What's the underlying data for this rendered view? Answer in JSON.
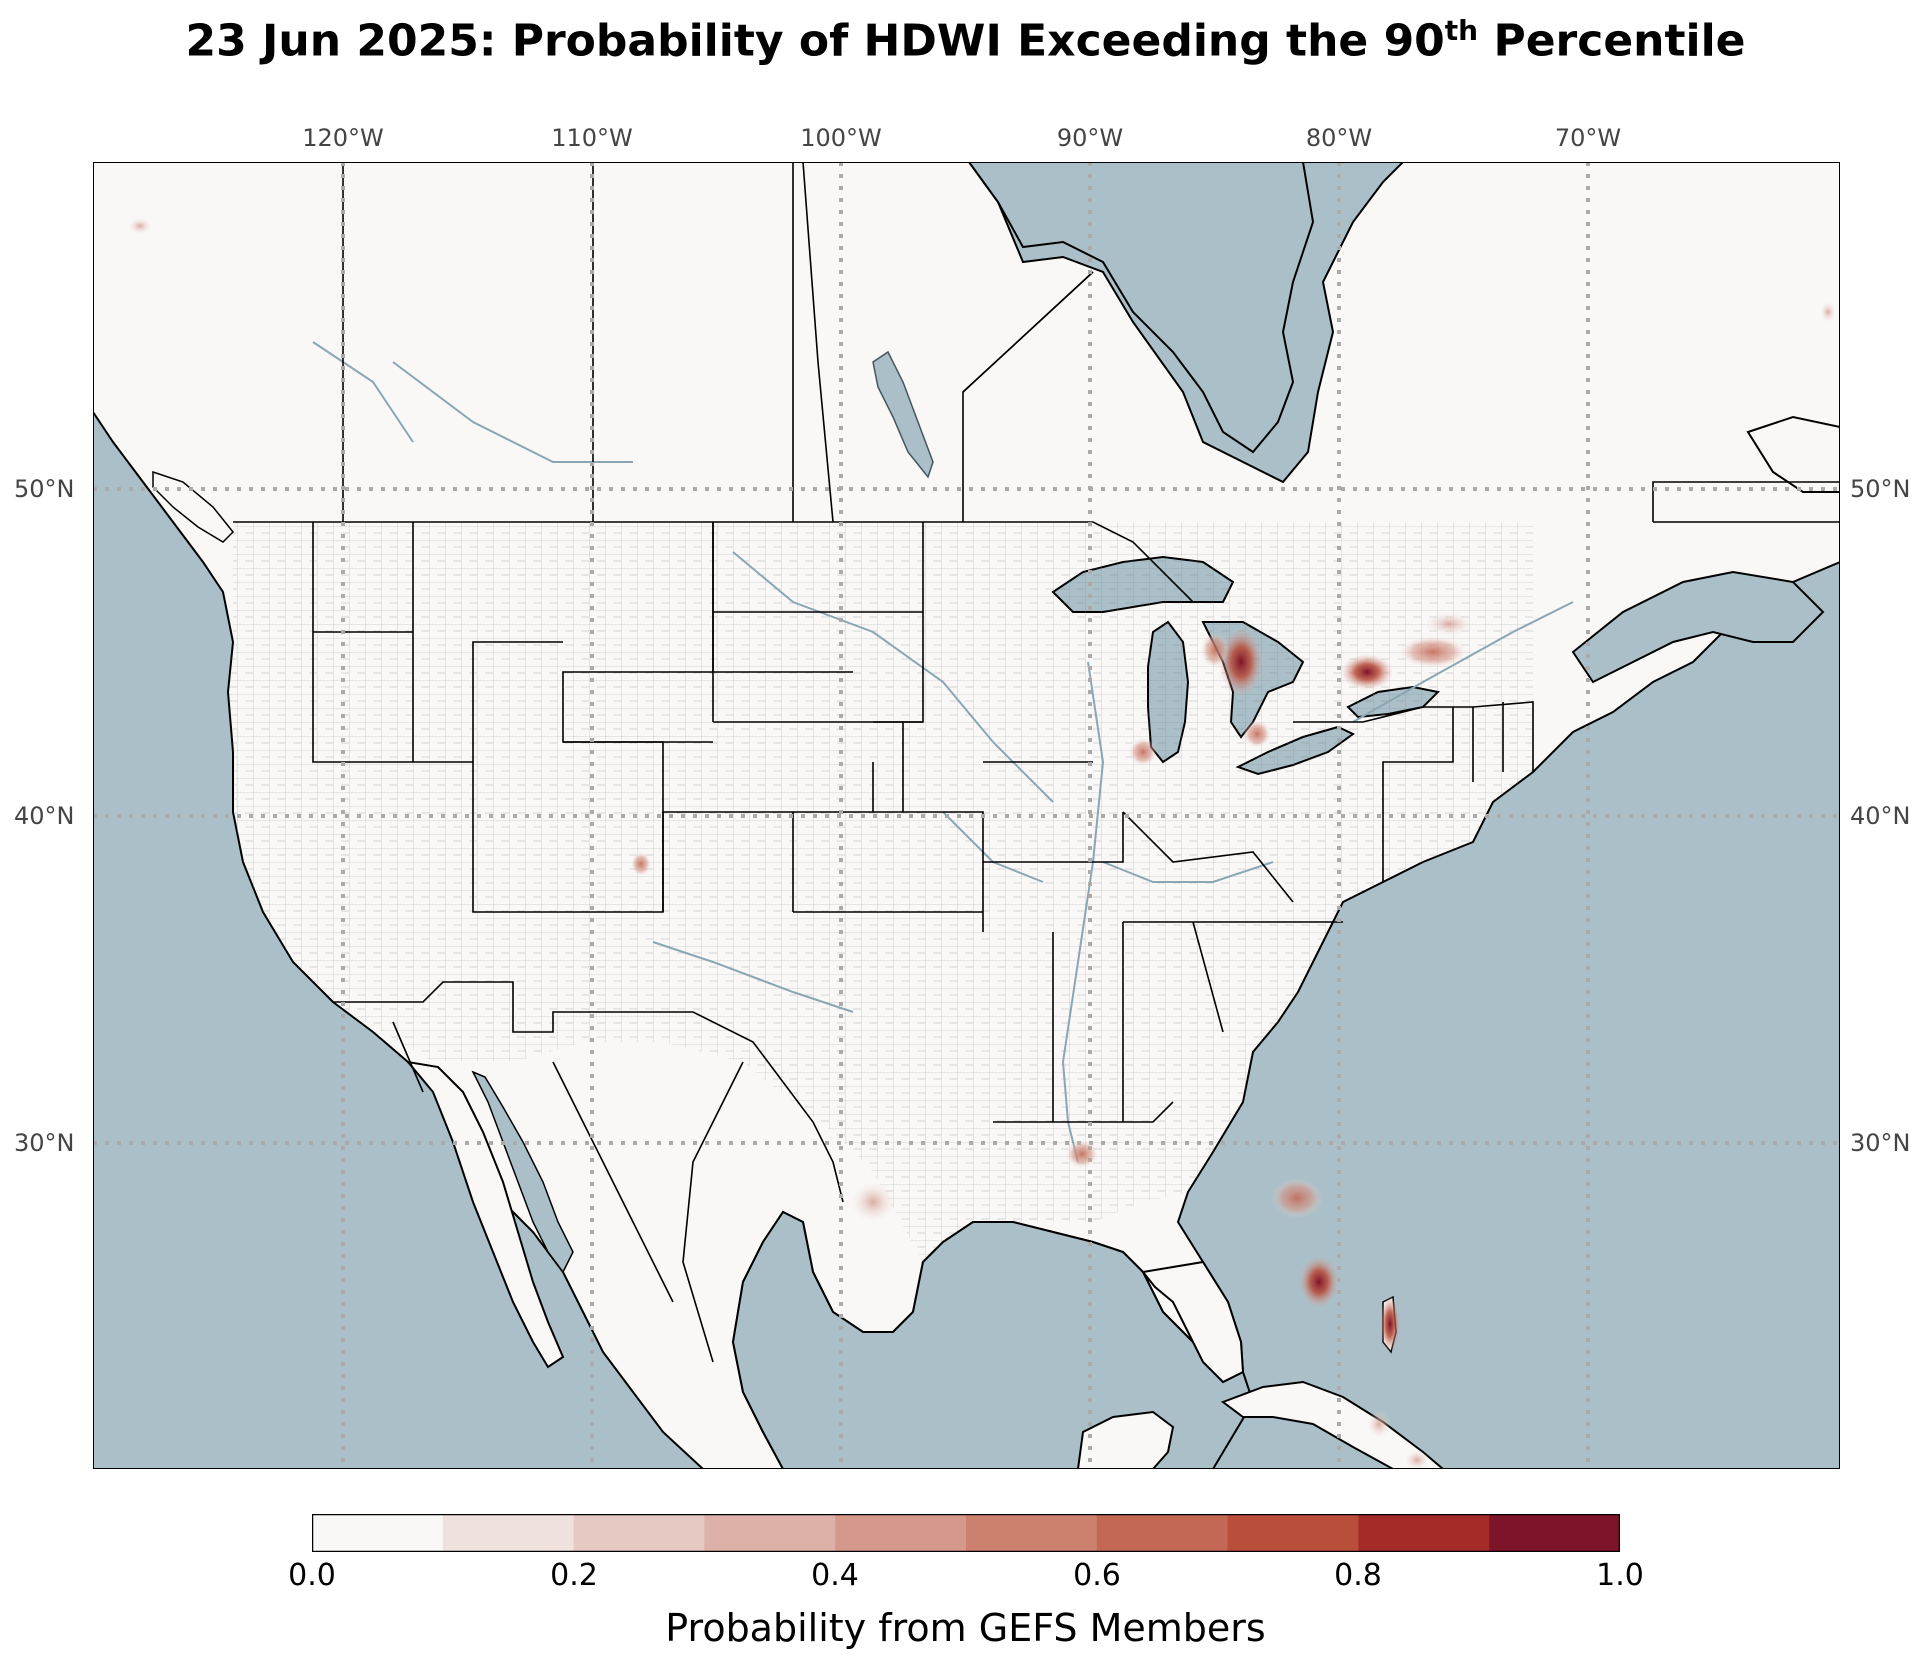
{
  "title": {
    "main": "23 Jun 2025: Probability of HDWI Exceeding the 90",
    "sup": "th",
    "tail": " Percentile"
  },
  "lon_labels": [
    "120°W",
    "110°W",
    "100°W",
    "90°W",
    "80°W",
    "70°W"
  ],
  "lat_labels": [
    "50°N",
    "40°N",
    "30°N"
  ],
  "colorbar": {
    "label": "Probability from GEFS Members",
    "ticks": [
      "0.0",
      "0.2",
      "0.4",
      "0.6",
      "0.8",
      "1.0"
    ],
    "colors": [
      "#f9f8f7",
      "#efe1de",
      "#e6c9c3",
      "#ddb1a7",
      "#d5998b",
      "#cc816f",
      "#c36854",
      "#b94e3b",
      "#a32b28",
      "#7e1429"
    ]
  },
  "map_colors": {
    "ocean": "#aabfc7",
    "land": "#f9f8f7",
    "border": "#000000",
    "county": "#555555",
    "river": "#8aa6b3",
    "grid": "#aaaaaa"
  },
  "hotspots": [
    {
      "name": "northern-michigan",
      "level": 0.95
    },
    {
      "name": "southern-florida",
      "level": 0.9
    },
    {
      "name": "bahamas-andros",
      "level": 0.9
    },
    {
      "name": "lake-ontario-north",
      "level": 0.75
    },
    {
      "name": "central-florida",
      "level": 0.6
    },
    {
      "name": "northern-illinois",
      "level": 0.6
    },
    {
      "name": "southeast-louisiana",
      "level": 0.6
    },
    {
      "name": "southern-ontario-east",
      "level": 0.5
    },
    {
      "name": "southeast-michigan",
      "level": 0.5
    },
    {
      "name": "western-colorado",
      "level": 0.5
    },
    {
      "name": "south-texas",
      "level": 0.3
    },
    {
      "name": "eastern-cuba",
      "level": 0.35
    }
  ]
}
